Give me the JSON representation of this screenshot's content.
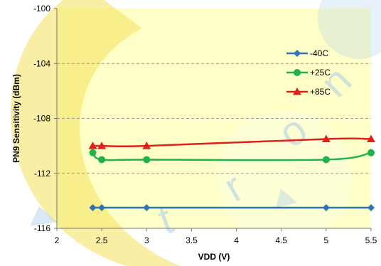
{
  "chart_data": {
    "type": "line",
    "xlabel": "VDD (V)",
    "ylabel": "PN9 Sensitivity (dBm)",
    "xlim": [
      2,
      5.5
    ],
    "ylim": [
      -116,
      -100
    ],
    "xticks": [
      2,
      2.5,
      3,
      3.5,
      4,
      4.5,
      5,
      5.5
    ],
    "xtick_labels": [
      "2",
      "2.5",
      "3",
      "3.5",
      "4",
      "4.5",
      "5",
      "5.5"
    ],
    "yticks": [
      -100,
      -104,
      -108,
      -112,
      -116
    ],
    "ytick_labels": [
      "-100",
      "-104",
      "-108",
      "-112",
      "-116"
    ],
    "grid": "horizontal dashed",
    "plot_background": "#FFFFC8",
    "legend_position": "top-right, inside plot",
    "series": [
      {
        "name": "-40C",
        "color": "#2E75B6",
        "marker": "diamond",
        "x": [
          2.4,
          2.5,
          3,
          5,
          5.5
        ],
        "y": [
          -114.5,
          -114.5,
          -114.5,
          -114.5,
          -114.5
        ]
      },
      {
        "name": "+25C",
        "color": "#22B14C",
        "marker": "circle",
        "x": [
          2.4,
          2.5,
          3,
          5,
          5.5
        ],
        "y": [
          -110.5,
          -111,
          -111,
          -111,
          -110.5
        ]
      },
      {
        "name": "+85C",
        "color": "#E0201B",
        "marker": "triangle",
        "x": [
          2.4,
          2.5,
          3,
          5,
          5.5
        ],
        "y": [
          -110,
          -110,
          -110,
          -109.5,
          -109.5
        ]
      }
    ]
  }
}
